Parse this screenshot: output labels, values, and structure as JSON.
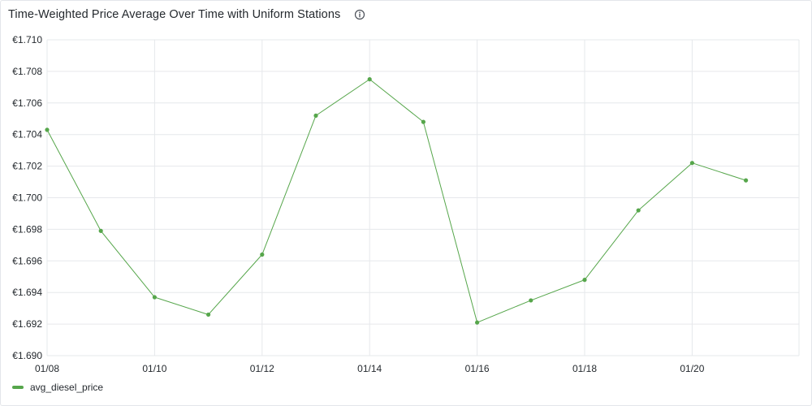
{
  "panel": {
    "title": "Time-Weighted Price Average Over Time with Uniform Stations",
    "info_icon": "info-circle-icon"
  },
  "colors": {
    "series": "#56a64b",
    "grid": "#e6e8eb",
    "text": "#24292e"
  },
  "chart_data": {
    "type": "line",
    "title": "Time-Weighted Price Average Over Time with Uniform Stations",
    "xlabel": "",
    "ylabel": "",
    "x": [
      "01/08",
      "01/09",
      "01/10",
      "01/11",
      "01/12",
      "01/13",
      "01/14",
      "01/15",
      "01/16",
      "01/17",
      "01/18",
      "01/19",
      "01/20",
      "01/21"
    ],
    "x_tick_labels": [
      "01/08",
      "01/10",
      "01/12",
      "01/14",
      "01/16",
      "01/18",
      "01/20"
    ],
    "y_tick_labels": [
      "€1.710",
      "€1.708",
      "€1.706",
      "€1.704",
      "€1.702",
      "€1.700",
      "€1.698",
      "€1.696",
      "€1.694",
      "€1.692",
      "€1.690"
    ],
    "y_ticks": [
      1.71,
      1.708,
      1.706,
      1.704,
      1.702,
      1.7,
      1.698,
      1.696,
      1.694,
      1.692,
      1.69
    ],
    "ylim": [
      1.69,
      1.71
    ],
    "grid": true,
    "legend_position": "bottom-left",
    "series": [
      {
        "name": "avg_diesel_price",
        "color": "#56a64b",
        "values": [
          1.7043,
          1.6979,
          1.6937,
          1.6926,
          1.6964,
          1.7052,
          1.7075,
          1.7048,
          1.6921,
          1.6935,
          1.6948,
          1.6992,
          1.7022,
          1.7011
        ]
      }
    ]
  }
}
